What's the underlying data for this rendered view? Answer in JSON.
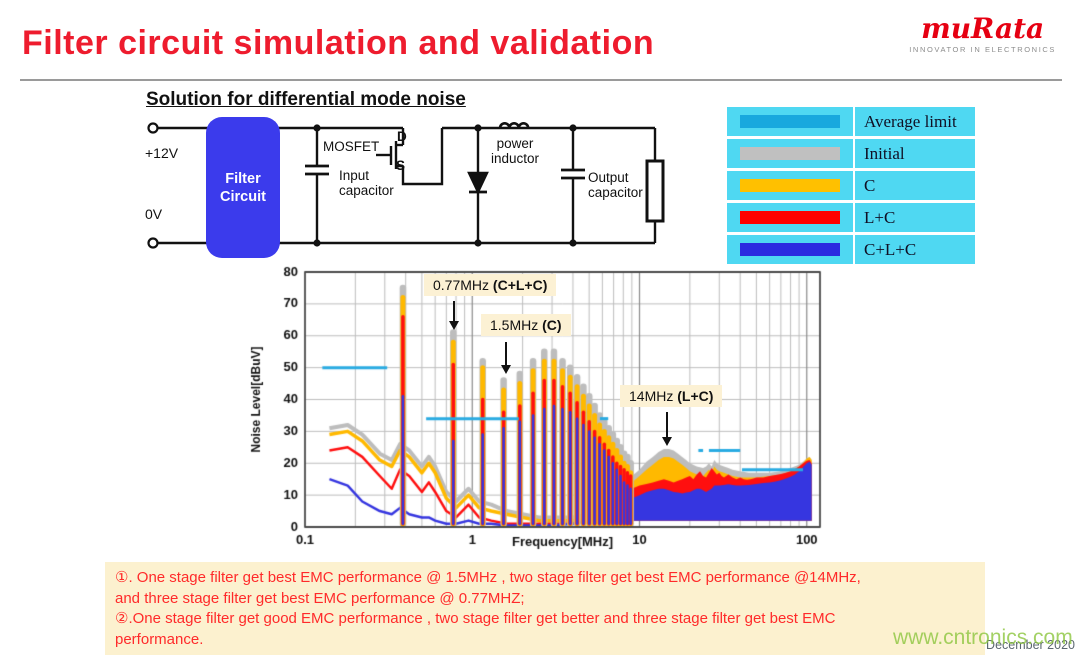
{
  "slide": {
    "title": "Filter circuit simulation and validation",
    "subtitle": "Solution for  differential mode noise",
    "date": "December 2020",
    "watermark": "www.cntronics.com"
  },
  "logo": {
    "brand": "muRata",
    "tagline": "INNOVATOR IN ELECTRONICS",
    "color": "#E60012"
  },
  "circuit": {
    "labels": {
      "vplus": "+12V",
      "vzero": "0V",
      "filter": "Filter Circuit",
      "mosfet": "MOSFET",
      "drain": "D",
      "source": "S",
      "input_cap": "Input capacitor",
      "inductor": "power inductor",
      "output_cap": "Output capacitor"
    }
  },
  "legend": {
    "bg": "#4FD8F2",
    "items": [
      {
        "label": "Average limit",
        "color": "#18A8DE"
      },
      {
        "label": "Initial",
        "color": "#C0C0C0"
      },
      {
        "label": "C",
        "color": "#FFC000"
      },
      {
        "label": "L+C",
        "color": "#FF0000"
      },
      {
        "label": "C+L+C",
        "color": "#2B2BE0"
      }
    ]
  },
  "chart_data": {
    "type": "line",
    "title": "",
    "xlabel": "Frequency[MHz]",
    "ylabel": "Noise Level[dBuV]",
    "xscale": "log",
    "xlim": [
      0.1,
      120
    ],
    "ylim": [
      0,
      80
    ],
    "yticks": [
      0,
      10,
      20,
      30,
      40,
      50,
      60,
      70,
      80
    ],
    "xticks": [
      0.1,
      1,
      10,
      100
    ],
    "grid": true,
    "limit": {
      "name": "Average limit",
      "color": "#29ABE2",
      "segments": [
        [
          0.127,
          0.31,
          50
        ],
        [
          0.53,
          1.9,
          34
        ],
        [
          5.8,
          6.5,
          34
        ],
        [
          22.5,
          24,
          24
        ],
        [
          26,
          40,
          24
        ],
        [
          41,
          95,
          18
        ]
      ]
    },
    "spike_freqs": [
      0.385,
      0.77,
      1.155,
      1.54,
      1.925,
      2.31,
      2.695,
      3.08,
      3.465,
      3.85,
      4.235,
      4.62,
      5.005,
      5.39,
      5.775,
      6.16,
      6.545,
      6.93,
      7.315,
      7.7,
      8.085,
      8.47,
      8.855
    ],
    "series": [
      {
        "name": "Initial",
        "color": "#BDBDBD",
        "baseline": [
          [
            0.14,
            31
          ],
          [
            0.18,
            32
          ],
          [
            0.22,
            29
          ],
          [
            0.28,
            23
          ],
          [
            0.33,
            21
          ],
          [
            0.37,
            26
          ],
          [
            0.42,
            24
          ],
          [
            0.5,
            19
          ],
          [
            0.55,
            22
          ],
          [
            0.6,
            19
          ],
          [
            0.7,
            11
          ],
          [
            0.8,
            8
          ],
          [
            0.95,
            12
          ],
          [
            1.1,
            8
          ],
          [
            1.3,
            7
          ],
          [
            1.6,
            5
          ],
          [
            2,
            4
          ],
          [
            2.5,
            3
          ],
          [
            3,
            3
          ],
          [
            4,
            3
          ],
          [
            5,
            4
          ],
          [
            6,
            6
          ],
          [
            7,
            9
          ],
          [
            8,
            12
          ],
          [
            9,
            16
          ]
        ],
        "spikes": [
          75,
          61,
          52,
          46,
          48,
          52,
          55,
          55,
          52,
          50,
          47,
          44,
          41,
          38,
          35,
          33,
          31,
          29,
          27,
          25,
          23,
          22,
          20
        ],
        "hf": [
          [
            9,
            16
          ],
          [
            10,
            18
          ],
          [
            11,
            20.5
          ],
          [
            12,
            22
          ],
          [
            13,
            23.5
          ],
          [
            14,
            24.5
          ],
          [
            15,
            24.5
          ],
          [
            16,
            24
          ],
          [
            17,
            23
          ],
          [
            18,
            22
          ],
          [
            19,
            21
          ],
          [
            20,
            20
          ],
          [
            22,
            19
          ],
          [
            24,
            18.5
          ],
          [
            25,
            19
          ],
          [
            26,
            20
          ],
          [
            27,
            19
          ],
          [
            28,
            21
          ],
          [
            29,
            20
          ],
          [
            30,
            19.5
          ],
          [
            32,
            19
          ],
          [
            34,
            18.5
          ],
          [
            36,
            18
          ],
          [
            40,
            17.5
          ],
          [
            45,
            17
          ],
          [
            50,
            17
          ],
          [
            60,
            17
          ],
          [
            70,
            17.5
          ],
          [
            80,
            18.5
          ],
          [
            90,
            19.5
          ],
          [
            95,
            20.5
          ],
          [
            100,
            21.5
          ],
          [
            104,
            22
          ],
          [
            107,
            21
          ]
        ]
      },
      {
        "name": "C",
        "color": "#FFB900",
        "baseline": [
          [
            0.14,
            29
          ],
          [
            0.18,
            30
          ],
          [
            0.22,
            27
          ],
          [
            0.28,
            21
          ],
          [
            0.33,
            19
          ],
          [
            0.37,
            24
          ],
          [
            0.42,
            22
          ],
          [
            0.5,
            17
          ],
          [
            0.55,
            20
          ],
          [
            0.6,
            17
          ],
          [
            0.7,
            9
          ],
          [
            0.8,
            6
          ],
          [
            0.95,
            10
          ],
          [
            1.1,
            6
          ],
          [
            1.3,
            5
          ],
          [
            1.6,
            4
          ],
          [
            2,
            3
          ],
          [
            2.5,
            2
          ],
          [
            3,
            2
          ],
          [
            4,
            2
          ],
          [
            5,
            3
          ],
          [
            6,
            5
          ],
          [
            7,
            8
          ],
          [
            8,
            10
          ],
          [
            9,
            14
          ]
        ],
        "spikes": [
          72,
          58,
          50,
          43,
          45,
          49,
          52,
          52,
          49,
          47,
          44,
          41,
          38,
          35,
          32,
          30,
          28,
          26,
          24,
          22,
          20,
          19,
          17
        ],
        "hf": [
          [
            9,
            14
          ],
          [
            10,
            16
          ],
          [
            11,
            18
          ],
          [
            12,
            19.5
          ],
          [
            13,
            21
          ],
          [
            14,
            22
          ],
          [
            15,
            22
          ],
          [
            16,
            21.5
          ],
          [
            17,
            20.5
          ],
          [
            18,
            19.5
          ],
          [
            19,
            18.5
          ],
          [
            20,
            17.5
          ],
          [
            22,
            16.5
          ],
          [
            24,
            16
          ],
          [
            25,
            17
          ],
          [
            26,
            18
          ],
          [
            27,
            17
          ],
          [
            28,
            19
          ],
          [
            29,
            18
          ],
          [
            30,
            17.5
          ],
          [
            32,
            17
          ],
          [
            34,
            16.5
          ],
          [
            36,
            16
          ],
          [
            40,
            15.5
          ],
          [
            45,
            15.5
          ],
          [
            50,
            15.5
          ],
          [
            60,
            16
          ],
          [
            70,
            16.5
          ],
          [
            80,
            17.5
          ],
          [
            90,
            19
          ],
          [
            95,
            20
          ],
          [
            100,
            21.5
          ],
          [
            104,
            22
          ],
          [
            107,
            21
          ]
        ]
      },
      {
        "name": "L+C",
        "color": "#FF0F0F",
        "baseline": [
          [
            0.14,
            24
          ],
          [
            0.18,
            25
          ],
          [
            0.22,
            22
          ],
          [
            0.28,
            16
          ],
          [
            0.33,
            12
          ],
          [
            0.37,
            18
          ],
          [
            0.42,
            16
          ],
          [
            0.5,
            11
          ],
          [
            0.55,
            14
          ],
          [
            0.6,
            11
          ],
          [
            0.7,
            5
          ],
          [
            0.8,
            3
          ],
          [
            0.95,
            7
          ],
          [
            1.1,
            3
          ],
          [
            1.3,
            2
          ],
          [
            1.6,
            1
          ],
          [
            2,
            1
          ],
          [
            2.5,
            1
          ],
          [
            3,
            1
          ],
          [
            4,
            1
          ],
          [
            5,
            2
          ],
          [
            6,
            3
          ],
          [
            7,
            5
          ],
          [
            8,
            8
          ],
          [
            9,
            12
          ]
        ],
        "spikes": [
          66,
          51,
          40,
          36,
          38,
          42,
          46,
          46,
          44,
          42,
          39,
          36,
          33,
          30,
          28,
          26,
          24,
          22,
          20,
          19,
          18,
          17,
          16
        ],
        "hf": [
          [
            9,
            12
          ],
          [
            10,
            13
          ],
          [
            11,
            13.5
          ],
          [
            12,
            14
          ],
          [
            13,
            14.5
          ],
          [
            14,
            15
          ],
          [
            15,
            14.5
          ],
          [
            16,
            14
          ],
          [
            17,
            14.5
          ],
          [
            18,
            15
          ],
          [
            19,
            15.5
          ],
          [
            20,
            16
          ],
          [
            21,
            15
          ],
          [
            22,
            16.5
          ],
          [
            23,
            17.5
          ],
          [
            24,
            16
          ],
          [
            25,
            15.5
          ],
          [
            26,
            17
          ],
          [
            27,
            18.5
          ],
          [
            28,
            17.5
          ],
          [
            29,
            16.5
          ],
          [
            30,
            17
          ],
          [
            31,
            16
          ],
          [
            32,
            15.5
          ],
          [
            33,
            16
          ],
          [
            34,
            16.5
          ],
          [
            35,
            16
          ],
          [
            36,
            15.5
          ],
          [
            38,
            15
          ],
          [
            40,
            15.5
          ],
          [
            42,
            15
          ],
          [
            44,
            14.8
          ],
          [
            46,
            15
          ],
          [
            48,
            15.2
          ],
          [
            50,
            15.5
          ],
          [
            55,
            15.5
          ],
          [
            60,
            16
          ],
          [
            65,
            16.3
          ],
          [
            70,
            16.6
          ],
          [
            75,
            17
          ],
          [
            80,
            17.5
          ],
          [
            85,
            18.2
          ],
          [
            90,
            19
          ],
          [
            95,
            20
          ],
          [
            100,
            20.8
          ],
          [
            104,
            21
          ],
          [
            107,
            20
          ]
        ]
      },
      {
        "name": "C+L+C",
        "color": "#3636E0",
        "baseline": [
          [
            0.14,
            15
          ],
          [
            0.18,
            13
          ],
          [
            0.22,
            8
          ],
          [
            0.28,
            5
          ],
          [
            0.33,
            4
          ],
          [
            0.37,
            6
          ],
          [
            0.42,
            4
          ],
          [
            0.5,
            3
          ],
          [
            0.55,
            3
          ],
          [
            0.6,
            2
          ],
          [
            0.7,
            1
          ],
          [
            0.8,
            1
          ],
          [
            0.95,
            2
          ],
          [
            1.1,
            1
          ],
          [
            1.3,
            1
          ],
          [
            1.6,
            0.5
          ],
          [
            2,
            0.5
          ],
          [
            2.5,
            0.5
          ],
          [
            3,
            0.5
          ],
          [
            4,
            1
          ],
          [
            5,
            2
          ],
          [
            6,
            3
          ],
          [
            7,
            5
          ],
          [
            8,
            7
          ],
          [
            9,
            9
          ]
        ],
        "spikes": [
          41,
          27,
          29,
          31,
          33,
          35,
          37,
          38,
          37,
          36,
          34,
          32,
          30,
          28,
          26,
          24,
          22,
          20,
          18,
          16,
          14,
          13,
          12
        ],
        "hf": [
          [
            9,
            9
          ],
          [
            10,
            10
          ],
          [
            11,
            11
          ],
          [
            12,
            11.5
          ],
          [
            13,
            12
          ],
          [
            14,
            12
          ],
          [
            15,
            11.5
          ],
          [
            16,
            11
          ],
          [
            17,
            10.8
          ],
          [
            18,
            10.5
          ],
          [
            19,
            10.8
          ],
          [
            20,
            11
          ],
          [
            21,
            11.5
          ],
          [
            22,
            12
          ],
          [
            23,
            12
          ],
          [
            24,
            11.5
          ],
          [
            25,
            11
          ],
          [
            26,
            11.5
          ],
          [
            27,
            12
          ],
          [
            28,
            13
          ],
          [
            30,
            13
          ],
          [
            32,
            13.2
          ],
          [
            34,
            13.4
          ],
          [
            36,
            13.2
          ],
          [
            38,
            13
          ],
          [
            40,
            13
          ],
          [
            45,
            13.2
          ],
          [
            50,
            13.5
          ],
          [
            55,
            13.8
          ],
          [
            60,
            14
          ],
          [
            65,
            14.3
          ],
          [
            70,
            14.7
          ],
          [
            75,
            15.2
          ],
          [
            80,
            15.8
          ],
          [
            85,
            16.5
          ],
          [
            90,
            17.5
          ],
          [
            95,
            18.8
          ],
          [
            100,
            20
          ],
          [
            104,
            20.5
          ],
          [
            107,
            19.5
          ]
        ]
      }
    ],
    "annotations": [
      {
        "text": "0.77MHz ",
        "bold": "(C+L+C)",
        "freq": 0.77
      },
      {
        "text": "1.5MHz ",
        "bold": "(C)",
        "freq": 1.5
      },
      {
        "text": "14MHz ",
        "bold": "(L+C)",
        "freq": 14
      }
    ]
  },
  "notes": {
    "lines": [
      "①. One stage filter get best EMC performance @ 1.5MHz , two stage filter get best EMC performance @14MHz,",
      "and three stage filter get best EMC performance @ 0.77MHZ;",
      "②.One stage filter get good EMC performance , two stage filter get better and three stage filter get best EMC",
      "performance."
    ]
  }
}
